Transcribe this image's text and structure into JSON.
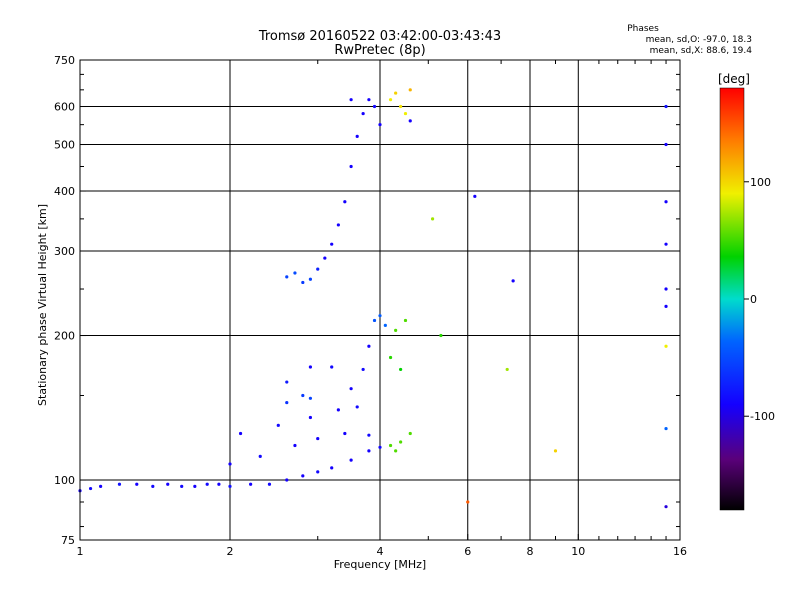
{
  "chart_data": {
    "type": "scatter",
    "title": "Tromsø 20160522 03:42:00-03:43:43",
    "subtitle": "RwPretec (8p)",
    "xlabel": "Frequency [MHz]",
    "ylabel": "Stationary phase Virtual Height [km]",
    "x_scale": "log",
    "y_scale": "log",
    "xlim": [
      1,
      16
    ],
    "ylim": [
      75,
      750
    ],
    "x_ticks": [
      1,
      2,
      4,
      6,
      8,
      10,
      16
    ],
    "x_tick_labels": [
      "1",
      "2",
      "4",
      "6",
      "8",
      "10",
      "16"
    ],
    "y_ticks": [
      75,
      100,
      200,
      300,
      400,
      500,
      600,
      750
    ],
    "y_tick_labels": [
      "75",
      "100",
      "200",
      "300",
      "400",
      "500",
      "600",
      "750"
    ],
    "grid": true,
    "stats": {
      "heading": "Phases",
      "line_o": "mean, sd,O: -97.0, 18.3",
      "line_x": "mean, sd,X:  88.6, 19.4"
    },
    "colorbar": {
      "label": "[deg]",
      "range": [
        -180,
        180
      ],
      "ticks": [
        100,
        0,
        -100
      ],
      "tick_labels": [
        "100",
        "0",
        "-100"
      ]
    },
    "series": [
      {
        "name": "",
        "points": [
          [
            1.0,
            95,
            -100
          ],
          [
            1.05,
            96,
            -95
          ],
          [
            1.1,
            97,
            -100
          ],
          [
            1.2,
            98,
            -90
          ],
          [
            1.3,
            98,
            -100
          ],
          [
            1.4,
            97,
            -95
          ],
          [
            1.5,
            98,
            -100
          ],
          [
            1.6,
            97,
            -95
          ],
          [
            1.7,
            97,
            -100
          ],
          [
            1.8,
            98,
            -95
          ],
          [
            1.9,
            98,
            -100
          ],
          [
            2.0,
            97,
            -90
          ],
          [
            2.2,
            98,
            -100
          ],
          [
            2.4,
            98,
            -95
          ],
          [
            2.6,
            100,
            -100
          ],
          [
            2.8,
            102,
            -100
          ],
          [
            3.0,
            104,
            -95
          ],
          [
            3.2,
            106,
            -100
          ],
          [
            3.5,
            110,
            -100
          ],
          [
            3.8,
            115,
            -100
          ],
          [
            4.0,
            117,
            -95
          ],
          [
            2.0,
            108,
            -100
          ],
          [
            2.3,
            112,
            -95
          ],
          [
            2.7,
            118,
            -100
          ],
          [
            3.0,
            122,
            -100
          ],
          [
            3.4,
            125,
            -100
          ],
          [
            3.8,
            124,
            -95
          ],
          [
            2.1,
            125,
            -100
          ],
          [
            2.5,
            130,
            -95
          ],
          [
            2.9,
            135,
            -100
          ],
          [
            3.3,
            140,
            -100
          ],
          [
            3.6,
            142,
            -95
          ],
          [
            2.6,
            145,
            -70
          ],
          [
            2.8,
            150,
            -65
          ],
          [
            2.9,
            148,
            -60
          ],
          [
            2.6,
            160,
            -85
          ],
          [
            2.9,
            172,
            -100
          ],
          [
            3.2,
            172,
            -95
          ],
          [
            3.5,
            155,
            -100
          ],
          [
            3.7,
            170,
            -95
          ],
          [
            3.8,
            190,
            -100
          ],
          [
            3.9,
            215,
            -50
          ],
          [
            4.0,
            220,
            -45
          ],
          [
            4.1,
            210,
            -40
          ],
          [
            4.3,
            205,
            60
          ],
          [
            4.5,
            215,
            60
          ],
          [
            4.2,
            118,
            60
          ],
          [
            4.3,
            115,
            60
          ],
          [
            4.4,
            120,
            60
          ],
          [
            4.6,
            125,
            60
          ],
          [
            4.2,
            180,
            50
          ],
          [
            4.4,
            170,
            40
          ],
          [
            5.3,
            200,
            50
          ],
          [
            7.2,
            170,
            80
          ],
          [
            9.0,
            115,
            110
          ],
          [
            6.0,
            90,
            150
          ],
          [
            2.6,
            265,
            -60
          ],
          [
            2.7,
            270,
            -55
          ],
          [
            2.8,
            258,
            -65
          ],
          [
            2.9,
            262,
            -60
          ],
          [
            3.0,
            275,
            -80
          ],
          [
            3.1,
            290,
            -100
          ],
          [
            3.2,
            310,
            -100
          ],
          [
            3.3,
            340,
            -100
          ],
          [
            3.4,
            380,
            -100
          ],
          [
            3.5,
            450,
            -100
          ],
          [
            3.6,
            520,
            -100
          ],
          [
            3.7,
            580,
            -100
          ],
          [
            3.8,
            620,
            -100
          ],
          [
            3.9,
            600,
            -95
          ],
          [
            4.0,
            550,
            -100
          ],
          [
            3.5,
            620,
            -100
          ],
          [
            4.2,
            620,
            100
          ],
          [
            4.3,
            640,
            110
          ],
          [
            4.4,
            600,
            105
          ],
          [
            4.5,
            580,
            100
          ],
          [
            4.6,
            650,
            120
          ],
          [
            4.6,
            560,
            -100
          ],
          [
            5.1,
            350,
            80
          ],
          [
            6.2,
            390,
            -100
          ],
          [
            7.4,
            260,
            -100
          ],
          [
            15.0,
            600,
            -90
          ],
          [
            15.0,
            500,
            -100
          ],
          [
            15.0,
            380,
            -100
          ],
          [
            15.0,
            310,
            -100
          ],
          [
            15.0,
            250,
            -100
          ],
          [
            15.0,
            230,
            -100
          ],
          [
            15.0,
            190,
            100
          ],
          [
            15.0,
            128,
            -40
          ],
          [
            15.0,
            88,
            -110
          ]
        ]
      }
    ]
  }
}
